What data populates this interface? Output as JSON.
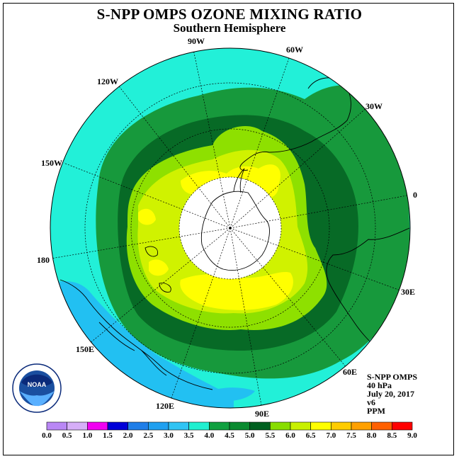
{
  "title": "S-NPP OMPS OZONE MIXING RATIO",
  "subtitle": "Southern Hemisphere",
  "longitude_labels": [
    "90W",
    "60W",
    "30W",
    "0",
    "30E",
    "60E",
    "90E",
    "120E",
    "150E",
    "180",
    "150W",
    "120W"
  ],
  "info": {
    "product": "S-NPP OMPS",
    "level": "40 hPa",
    "date": "July 20, 2017",
    "version": "v6",
    "units": "PPM"
  },
  "logo": {
    "text": "NOAA",
    "name": "noaa-logo"
  },
  "colorbar": {
    "ticks": [
      "0.0",
      "0.5",
      "1.0",
      "1.5",
      "2.0",
      "2.5",
      "3.0",
      "3.5",
      "4.0",
      "4.5",
      "5.0",
      "5.5",
      "6.0",
      "6.5",
      "7.0",
      "7.5",
      "8.0",
      "8.5",
      "9.0"
    ],
    "colors": [
      "#b987f5",
      "#d6aef8",
      "#f200f2",
      "#0000d8",
      "#1f7ee8",
      "#20a0f0",
      "#30c4f4",
      "#20f0d0",
      "#10a040",
      "#0a8a30",
      "#006020",
      "#88dd00",
      "#c8f000",
      "#ffff00",
      "#ffcc00",
      "#ffa000",
      "#ff6000",
      "#ff0000",
      "#8b5a2b"
    ]
  },
  "map": {
    "center_pole": "South Pole",
    "projection": "polar stereographic",
    "colors": {
      "ocean_band": "#22f0d8",
      "low": "#22c0f2",
      "ring_green": "#17993c",
      "ring_dark": "#076a26",
      "ring_lime": "#8ee000",
      "ring_yellowgreen": "#d0f200",
      "core_yellow": "#ffff00",
      "masked": "#ffffff"
    }
  }
}
